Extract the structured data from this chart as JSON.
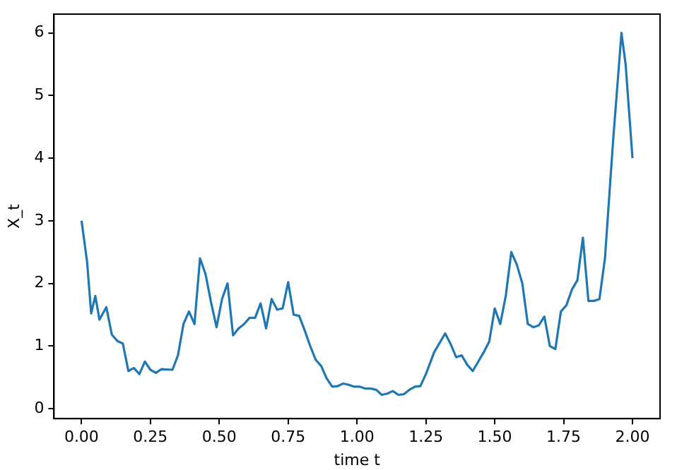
{
  "chart_data": {
    "type": "line",
    "xlabel": "time t",
    "ylabel": "X_t",
    "color": "#1f77b4",
    "x": [
      0,
      0.02,
      0.035,
      0.05,
      0.065,
      0.09,
      0.11,
      0.13,
      0.15,
      0.17,
      0.19,
      0.21,
      0.23,
      0.25,
      0.27,
      0.29,
      0.33,
      0.35,
      0.37,
      0.39,
      0.41,
      0.43,
      0.45,
      0.47,
      0.49,
      0.51,
      0.53,
      0.55,
      0.57,
      0.59,
      0.61,
      0.63,
      0.65,
      0.67,
      0.69,
      0.71,
      0.73,
      0.75,
      0.77,
      0.79,
      0.81,
      0.83,
      0.85,
      0.87,
      0.89,
      0.91,
      0.93,
      0.95,
      0.97,
      0.99,
      1.01,
      1.03,
      1.05,
      1.07,
      1.09,
      1.11,
      1.13,
      1.15,
      1.17,
      1.19,
      1.21,
      1.23,
      1.25,
      1.28,
      1.32,
      1.34,
      1.36,
      1.38,
      1.4,
      1.42,
      1.44,
      1.46,
      1.48,
      1.5,
      1.52,
      1.54,
      1.56,
      1.58,
      1.6,
      1.62,
      1.64,
      1.66,
      1.68,
      1.7,
      1.72,
      1.74,
      1.76,
      1.78,
      1.8,
      1.82,
      1.84,
      1.86,
      1.88,
      1.9,
      1.93,
      1.96,
      1.975,
      2.0
    ],
    "values": [
      3.0,
      2.35,
      1.52,
      1.8,
      1.42,
      1.62,
      1.18,
      1.08,
      1.04,
      0.6,
      0.65,
      0.55,
      0.75,
      0.62,
      0.57,
      0.63,
      0.62,
      0.85,
      1.35,
      1.55,
      1.35,
      2.4,
      2.15,
      1.7,
      1.3,
      1.75,
      2.0,
      1.17,
      1.28,
      1.35,
      1.45,
      1.45,
      1.68,
      1.28,
      1.75,
      1.58,
      1.6,
      2.02,
      1.5,
      1.48,
      1.25,
      1.0,
      0.78,
      0.68,
      0.48,
      0.35,
      0.36,
      0.4,
      0.38,
      0.35,
      0.35,
      0.32,
      0.32,
      0.3,
      0.22,
      0.24,
      0.28,
      0.22,
      0.23,
      0.3,
      0.35,
      0.36,
      0.55,
      0.9,
      1.2,
      1.03,
      0.82,
      0.85,
      0.7,
      0.6,
      0.75,
      0.9,
      1.07,
      1.6,
      1.35,
      1.8,
      2.5,
      2.3,
      2.0,
      1.35,
      1.3,
      1.33,
      1.47,
      1.0,
      0.95,
      1.55,
      1.65,
      1.9,
      2.05,
      2.73,
      1.72,
      1.72,
      1.75,
      2.4,
      4.3,
      6.0,
      5.5,
      4.0
    ],
    "xlim": [
      -0.1,
      2.1
    ],
    "xticks": [
      {
        "value": 0,
        "label": "0.00"
      },
      {
        "value": 0.25,
        "label": "0.25"
      },
      {
        "value": 0.5,
        "label": "0.50"
      },
      {
        "value": 0.75,
        "label": "0.75"
      },
      {
        "value": 1,
        "label": "1.00"
      },
      {
        "value": 1.25,
        "label": "1.25"
      },
      {
        "value": 1.5,
        "label": "1.50"
      },
      {
        "value": 1.75,
        "label": "1.75"
      },
      {
        "value": 2,
        "label": "2.00"
      }
    ],
    "ylim": [
      -0.16,
      6.3
    ],
    "yticks": [
      0,
      1,
      2,
      3,
      4,
      5,
      6
    ],
    "grid": false,
    "legend": false,
    "marker": "none",
    "line_style": "solid"
  }
}
